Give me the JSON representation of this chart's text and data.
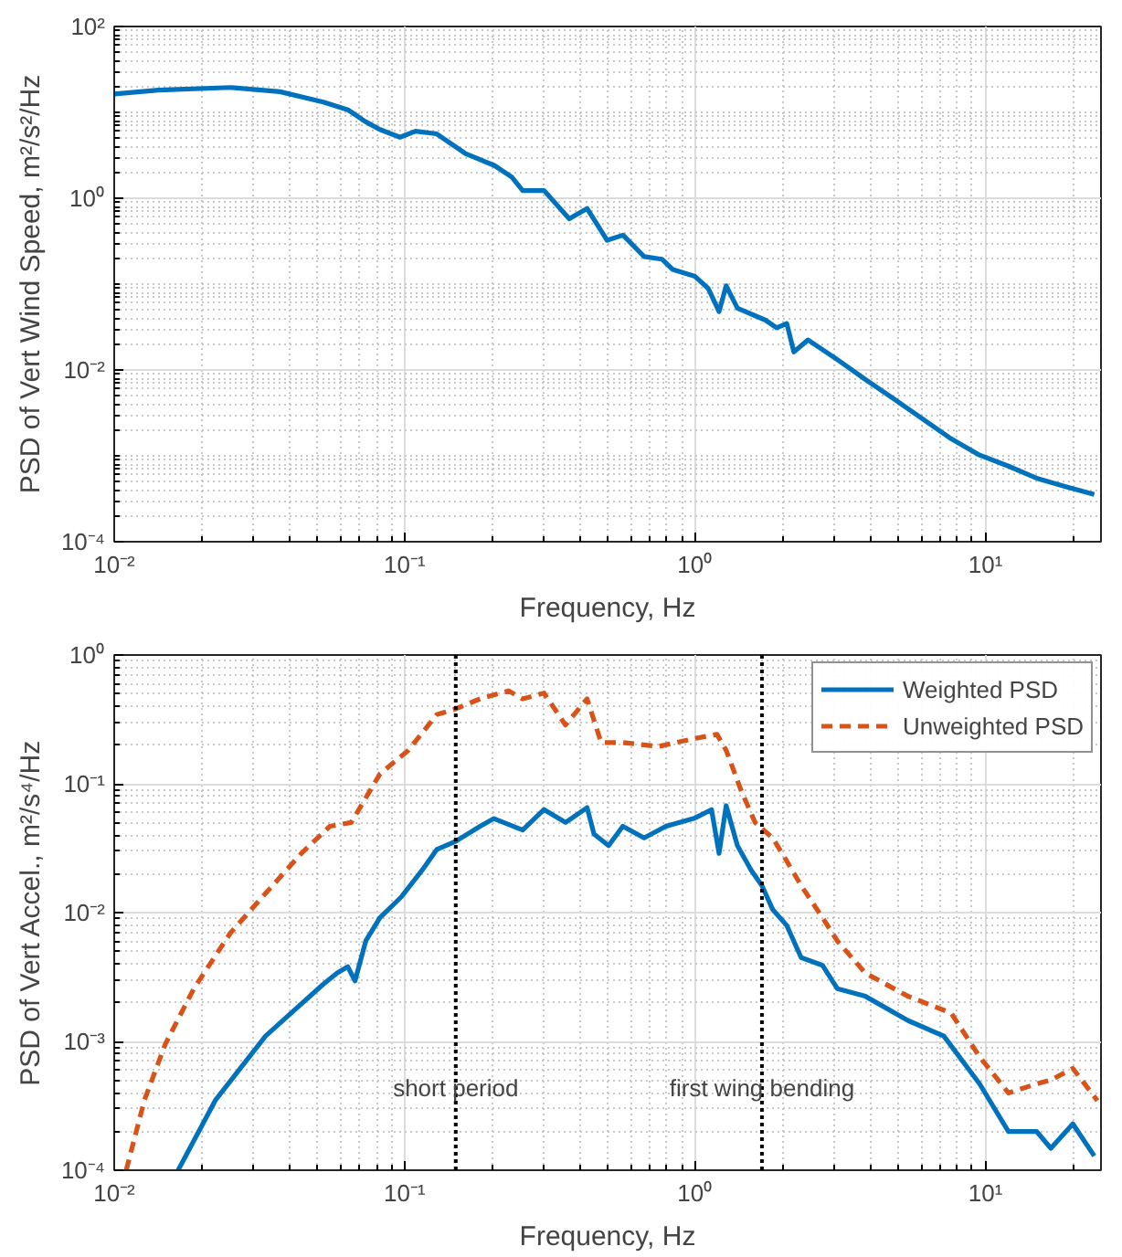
{
  "chart_data": [
    {
      "type": "line",
      "xlabel": "Frequency, Hz",
      "ylabel": "PSD of Vert Wind Speed, m²/s²/Hz",
      "log": "xy",
      "grid": true,
      "legend": false,
      "line_style": "solid",
      "xlim": [
        0.01,
        25
      ],
      "ylim": [
        0.0001,
        100
      ],
      "xticks": [
        {
          "value": 0.01,
          "label": "10⁻²"
        },
        {
          "value": 0.1,
          "label": "10⁻¹"
        },
        {
          "value": 1,
          "label": "10⁰"
        },
        {
          "value": 10,
          "label": "10¹"
        }
      ],
      "yticks": [
        {
          "value": 0.0001,
          "label": "10⁻⁴"
        },
        {
          "value": 0.01,
          "label": "10⁻²"
        },
        {
          "value": 1,
          "label": "10⁰"
        },
        {
          "value": 100,
          "label": "10²"
        }
      ],
      "series": [
        {
          "color": "#0072bd",
          "x": [
            0.01,
            0.0142,
            0.0251,
            0.0372,
            0.0525,
            0.0638,
            0.0735,
            0.0822,
            0.0964,
            0.109,
            0.129,
            0.162,
            0.204,
            0.234,
            0.255,
            0.302,
            0.369,
            0.425,
            0.498,
            0.565,
            0.668,
            0.769,
            0.838,
            1,
            1.11,
            1.21,
            1.28,
            1.4,
            1.75,
            1.91,
            2.07,
            2.19,
            2.45,
            3.09,
            3.86,
            4.85,
            6.08,
            7.62,
            9.55,
            12.0,
            15.0,
            18.9,
            23.7
          ],
          "values": [
            16.4,
            18.2,
            19.5,
            17.4,
            13.2,
            10.7,
            7.76,
            6.31,
            5.13,
            6.03,
            5.62,
            3.31,
            2.4,
            1.76,
            1.23,
            1.23,
            0.575,
            0.759,
            0.324,
            0.372,
            0.209,
            0.195,
            0.148,
            0.123,
            0.0891,
            0.0479,
            0.0955,
            0.0525,
            0.038,
            0.0309,
            0.0347,
            0.0162,
            0.0224,
            0.0132,
            0.00776,
            0.00457,
            0.00269,
            0.00158,
            0.00102,
            0.000759,
            0.00055,
            0.000437,
            0.000355
          ]
        }
      ]
    },
    {
      "type": "line",
      "xlabel": "Frequency, Hz",
      "ylabel": "PSD of Vert Accel., m²/s⁴/Hz",
      "log": "xy",
      "grid": true,
      "legend": "top right",
      "xlim": [
        0.01,
        25
      ],
      "ylim": [
        0.0001,
        1
      ],
      "xticks": [
        {
          "value": 0.01,
          "label": "10⁻²"
        },
        {
          "value": 0.1,
          "label": "10⁻¹"
        },
        {
          "value": 1,
          "label": "10⁰"
        },
        {
          "value": 10,
          "label": "10¹"
        }
      ],
      "yticks": [
        {
          "value": 0.0001,
          "label": "10⁻⁴"
        },
        {
          "value": 0.001,
          "label": "10⁻³"
        },
        {
          "value": 0.01,
          "label": "10⁻²"
        },
        {
          "value": 0.1,
          "label": "10⁻¹"
        },
        {
          "value": 1,
          "label": "10⁰"
        }
      ],
      "ref_lines": [
        {
          "axis": "x",
          "value": 0.15,
          "color": "#000000",
          "line_style": "dotted",
          "label": "short period"
        },
        {
          "axis": "x",
          "value": 1.7,
          "color": "#000000",
          "line_style": "dotted",
          "label": "first wing bending"
        }
      ],
      "series": [
        {
          "name": "Weighted PSD",
          "color": "#0072bd",
          "line_style": "solid",
          "x": [
            0.0166,
            0.0223,
            0.0332,
            0.0522,
            0.0585,
            0.0637,
            0.0675,
            0.0735,
            0.0822,
            0.0973,
            0.115,
            0.129,
            0.149,
            0.182,
            0.203,
            0.255,
            0.302,
            0.358,
            0.425,
            0.449,
            0.504,
            0.564,
            0.668,
            0.794,
            1,
            1.14,
            1.21,
            1.28,
            1.4,
            1.56,
            1.7,
            1.85,
            2.07,
            2.32,
            2.75,
            3.09,
            3.86,
            5.42,
            7.19,
            9.55,
            12.0,
            15.0,
            16.8,
            20.0,
            23.7
          ],
          "values": [
            0.0001,
            0.000349,
            0.0011,
            0.00275,
            0.00339,
            0.0038,
            0.00295,
            0.00603,
            0.00912,
            0.0132,
            0.0214,
            0.0309,
            0.0355,
            0.0468,
            0.0537,
            0.0437,
            0.0631,
            0.0501,
            0.0653,
            0.0407,
            0.0331,
            0.0468,
            0.038,
            0.0468,
            0.0543,
            0.0631,
            0.0288,
            0.0676,
            0.0331,
            0.0214,
            0.0162,
            0.0106,
            0.00794,
            0.00447,
            0.00389,
            0.00257,
            0.00224,
            0.00145,
            0.0011,
            0.000468,
            0.0002,
            0.0002,
            0.000148,
            0.000229,
            0.000129
          ]
        },
        {
          "name": "Unweighted PSD",
          "color": "#d95319",
          "line_style": "dashed",
          "x": [
            0.011,
            0.0127,
            0.015,
            0.0188,
            0.0251,
            0.0332,
            0.0441,
            0.0553,
            0.0655,
            0.0822,
            0.103,
            0.129,
            0.149,
            0.182,
            0.228,
            0.255,
            0.302,
            0.358,
            0.425,
            0.475,
            0.564,
            0.748,
            1,
            1.19,
            1.28,
            1.44,
            1.61,
            1.85,
            2.07,
            2.32,
            2.75,
            3.09,
            3.86,
            5.42,
            7.62,
            9.55,
            12.0,
            15.0,
            16.8,
            20.0,
            24.3
          ],
          "values": [
            0.0001,
            0.000349,
            0.000955,
            0.00257,
            0.00692,
            0.0141,
            0.0288,
            0.0468,
            0.0501,
            0.119,
            0.182,
            0.344,
            0.38,
            0.457,
            0.527,
            0.457,
            0.506,
            0.286,
            0.457,
            0.209,
            0.209,
            0.195,
            0.225,
            0.242,
            0.182,
            0.0891,
            0.0501,
            0.038,
            0.0251,
            0.0162,
            0.00912,
            0.00603,
            0.00339,
            0.00224,
            0.00166,
            0.000759,
            0.000398,
            0.000468,
            0.000501,
            0.000617,
            0.000347
          ]
        }
      ]
    }
  ]
}
